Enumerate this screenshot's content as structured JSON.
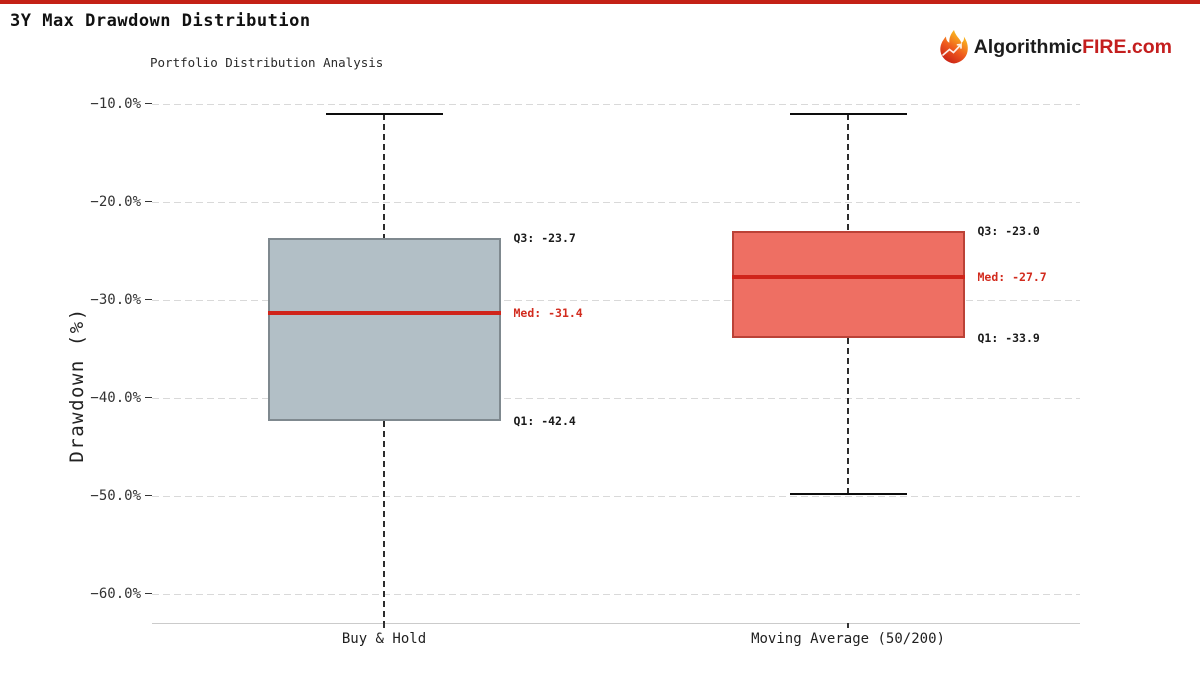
{
  "header": {
    "title": "3Y Max Drawdown Distribution",
    "logo": {
      "part1": "Algorithmic",
      "part2": "FIRE.com"
    }
  },
  "colors": {
    "top_bar": "#c42116",
    "grid": "#d9d9d9",
    "axis_spine": "#cbcbcb",
    "whisker": "#2b2b2b",
    "median_line": "#d0241a",
    "median_label": "#d22b1e",
    "quartile_label": "#1a1a1a",
    "logo_accent": "#c41e1e"
  },
  "chart_data": {
    "type": "box",
    "title": "Portfolio Distribution Analysis",
    "ylabel": "Drawdown (%)",
    "xlabel": "",
    "ylim": [
      -63,
      -8
    ],
    "grid": "horizontal-dashed",
    "legend": "none",
    "yticks": [
      {
        "value": -10,
        "label": "−10.0%"
      },
      {
        "value": -20,
        "label": "−20.0%"
      },
      {
        "value": -30,
        "label": "−30.0%"
      },
      {
        "value": -40,
        "label": "−40.0%"
      },
      {
        "value": -50,
        "label": "−50.0%"
      },
      {
        "value": -60,
        "label": "−60.0%"
      }
    ],
    "series": [
      {
        "label": "Buy & Hold",
        "q1": -42.4,
        "median": -31.4,
        "q3": -23.7,
        "whisker_high": -11.1,
        "whisker_high_capped": true,
        "whisker_low": -63.0,
        "whisker_low_capped": false,
        "q3_label": "Q3: -23.7",
        "median_label": "Med: -31.4",
        "q1_label": "Q1: -42.4",
        "fill": "#b2bfc6",
        "edge": "#7f898f"
      },
      {
        "label": "Moving Average (50/200)",
        "q1": -33.9,
        "median": -27.7,
        "q3": -23.0,
        "whisker_high": -11.1,
        "whisker_high_capped": true,
        "whisker_low": -49.8,
        "whisker_low_capped": true,
        "q3_label": "Q3: -23.0",
        "median_label": "Med: -27.7",
        "q1_label": "Q1: -33.9",
        "fill": "#ee6f63",
        "edge": "#bb4237"
      }
    ]
  }
}
